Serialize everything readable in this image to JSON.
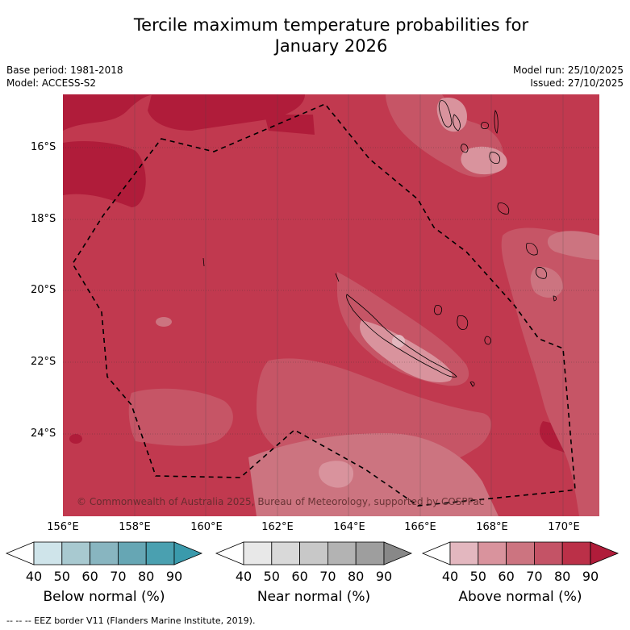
{
  "title_line1": "Tercile maximum temperature probabilities for",
  "title_line2": "January 2026",
  "base_period": "Base period: 1981-2018",
  "model": "Model: ACCESS-S2",
  "model_run": "Model run: 25/10/2025",
  "issued": "Issued: 27/10/2025",
  "lat_labels": [
    "16°S",
    "18°S",
    "20°S",
    "22°S",
    "24°S"
  ],
  "lon_labels": [
    "156°E",
    "158°E",
    "160°E",
    "162°E",
    "164°E",
    "166°E",
    "168°E",
    "170°E"
  ],
  "copyright": "© Commonwealth of Australia 2025, Bureau of Meteorology, supported by COSPPac",
  "colorbars": {
    "below": {
      "label": "Below normal (%)",
      "ticks": [
        "40",
        "50",
        "60",
        "70",
        "80",
        "90"
      ],
      "colors": [
        "#cfe4ea",
        "#a8c9d0",
        "#88b5c0",
        "#66a6b4",
        "#4aa0b0",
        "#3a9aac"
      ]
    },
    "near": {
      "label": "Near normal (%)",
      "ticks": [
        "40",
        "50",
        "60",
        "70",
        "80",
        "90"
      ],
      "colors": [
        "#e8e8e8",
        "#d9d9d9",
        "#c8c8c8",
        "#b3b3b3",
        "#9e9e9e",
        "#888888"
      ]
    },
    "above": {
      "label": "Above normal (%)",
      "ticks": [
        "40",
        "50",
        "60",
        "70",
        "80",
        "90"
      ],
      "colors": [
        "#e3b7bf",
        "#d9939d",
        "#cc7480",
        "#c45366",
        "#bb3048",
        "#b01c3a"
      ]
    }
  },
  "footer": "--  --  -- EEZ border V11 (Flanders Marine Institute, 2019)."
}
